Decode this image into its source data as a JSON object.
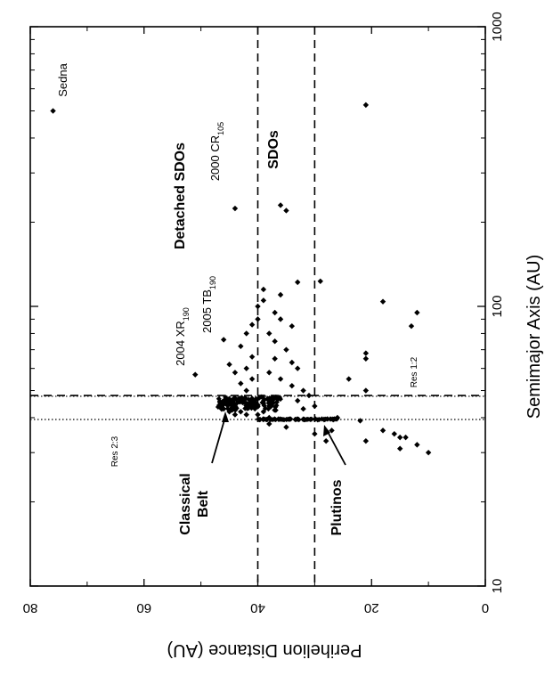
{
  "chart_data": {
    "type": "scatter",
    "orientation": "rotated-90-clockwise",
    "xlabel": "Semimajor Axis (AU)",
    "ylabel": "Perihelion Distance (AU)",
    "xscale": "log",
    "xlim": [
      10,
      1000
    ],
    "ylim": [
      0,
      80
    ],
    "xticks": [
      {
        "value": 10,
        "label": "10"
      },
      {
        "value": 100,
        "label": "100"
      },
      {
        "value": 1000,
        "label": "1000"
      }
    ],
    "yticks": [
      {
        "value": 0,
        "label": "0"
      },
      {
        "value": 20,
        "label": "20"
      },
      {
        "value": 40,
        "label": "40"
      },
      {
        "value": 60,
        "label": "60"
      },
      {
        "value": 80,
        "label": "80"
      }
    ],
    "reference_lines": [
      {
        "axis": "y",
        "value": 40,
        "style": "dashed"
      },
      {
        "axis": "y",
        "value": 30,
        "style": "dashed"
      },
      {
        "axis": "x",
        "value": 48,
        "style": "dashed"
      },
      {
        "axis": "x",
        "value": 47.7,
        "style": "dotted"
      },
      {
        "axis": "x",
        "value": 39.4,
        "style": "dotted"
      }
    ],
    "annotations": [
      {
        "text": "Sedna",
        "x": 500,
        "y": 76
      },
      {
        "text": "2000 CR",
        "sub": "105",
        "x": 224,
        "y": 44
      },
      {
        "text": "2005 TB",
        "sub": "190",
        "x": 76,
        "y": 46
      },
      {
        "text": "2004 XR",
        "sub": "190",
        "x": 57,
        "y": 51
      },
      {
        "text": "Detached SDOs",
        "x": 100,
        "y": 47
      },
      {
        "text": "SDOs",
        "x": 200,
        "y": 34
      },
      {
        "text": "Res 2:3",
        "x": 32,
        "y": 60
      },
      {
        "text": "Res 1:2",
        "x": 48,
        "y": 22
      },
      {
        "text": "Classical",
        "x": 18.5,
        "y": 53
      },
      {
        "text": "Belt",
        "x": 18.5,
        "y": 47
      },
      {
        "text": "Plutinos",
        "x": 21,
        "y": 27
      }
    ],
    "series": [
      {
        "marker": "diamond",
        "points": [
          [
            500,
            76
          ],
          [
            525,
            21
          ],
          [
            224,
            44
          ],
          [
            230,
            36
          ],
          [
            220,
            35
          ],
          [
            76,
            46
          ],
          [
            57,
            51
          ],
          [
            123,
            29
          ],
          [
            104,
            18
          ],
          [
            95,
            12
          ],
          [
            85,
            13
          ],
          [
            65,
            21
          ],
          [
            68,
            21
          ],
          [
            55,
            24
          ],
          [
            50,
            21
          ],
          [
            35,
            16
          ],
          [
            34,
            14
          ],
          [
            32,
            12
          ],
          [
            30,
            10
          ],
          [
            33,
            21
          ],
          [
            36,
            18
          ],
          [
            34,
            15
          ],
          [
            31,
            15
          ],
          [
            36,
            27
          ],
          [
            35,
            30
          ],
          [
            33,
            28
          ],
          [
            39,
            22
          ],
          [
            40,
            26
          ],
          [
            122,
            33
          ],
          [
            110,
            36
          ],
          [
            100,
            40
          ],
          [
            105,
            39
          ],
          [
            115,
            39
          ],
          [
            95,
            37
          ],
          [
            90,
            36
          ],
          [
            85,
            34
          ],
          [
            80,
            38
          ],
          [
            75,
            37
          ],
          [
            70,
            35
          ],
          [
            65,
            37
          ],
          [
            63,
            34
          ],
          [
            60,
            33
          ],
          [
            58,
            38
          ],
          [
            55,
            36
          ],
          [
            52,
            34
          ],
          [
            50,
            32
          ],
          [
            48,
            31
          ],
          [
            46,
            33
          ],
          [
            44,
            30
          ],
          [
            43,
            32
          ],
          [
            90,
            40
          ],
          [
            86,
            41
          ],
          [
            80,
            42
          ],
          [
            72,
            43
          ],
          [
            66,
            41
          ],
          [
            62,
            45
          ],
          [
            60,
            42
          ],
          [
            58,
            44
          ],
          [
            55,
            41
          ],
          [
            53,
            43
          ],
          [
            50,
            42
          ],
          [
            45,
            42
          ],
          [
            47,
            44
          ],
          [
            46,
            45
          ],
          [
            44,
            44
          ],
          [
            42,
            45
          ],
          [
            43,
            46
          ],
          [
            41,
            44
          ],
          [
            45,
            39
          ],
          [
            44,
            38
          ],
          [
            42,
            39
          ],
          [
            41,
            40
          ],
          [
            40,
            38
          ],
          [
            38,
            38
          ],
          [
            37,
            35
          ],
          [
            41,
            42
          ],
          [
            42,
            43
          ]
        ]
      }
    ],
    "dense_clusters": [
      {
        "name": "Classical Belt",
        "x_range": [
          42.5,
          47.5
        ],
        "y_range": [
          36,
          47
        ]
      },
      {
        "name": "Plutinos",
        "x_range": [
          39.3,
          39.6
        ],
        "y_range": [
          26,
          40
        ]
      }
    ]
  }
}
